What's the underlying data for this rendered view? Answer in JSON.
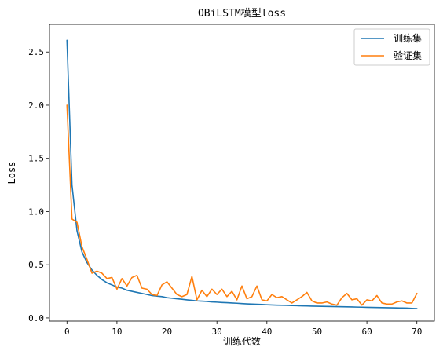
{
  "chart_data": {
    "type": "line",
    "title": "OBiLSTM模型loss",
    "xlabel": "训练代数",
    "ylabel": "Loss",
    "xlim": [
      -3.5,
      73.5
    ],
    "ylim": [
      -0.03,
      2.76
    ],
    "xticks": [
      0,
      10,
      20,
      30,
      40,
      50,
      60,
      70
    ],
    "yticks": [
      0.0,
      0.5,
      1.0,
      1.5,
      2.0,
      2.5
    ],
    "ytick_labels": [
      "0.0",
      "0.5",
      "1.0",
      "1.5",
      "2.0",
      "2.5"
    ],
    "grid": false,
    "legend": "top-right",
    "x": [
      0,
      1,
      2,
      3,
      4,
      5,
      6,
      7,
      8,
      9,
      10,
      11,
      12,
      13,
      14,
      15,
      16,
      17,
      18,
      19,
      20,
      21,
      22,
      23,
      24,
      25,
      26,
      27,
      28,
      29,
      30,
      31,
      32,
      33,
      34,
      35,
      36,
      37,
      38,
      39,
      40,
      41,
      42,
      43,
      44,
      45,
      46,
      47,
      48,
      49,
      50,
      51,
      52,
      53,
      54,
      55,
      56,
      57,
      58,
      59,
      60,
      61,
      62,
      63,
      64,
      65,
      66,
      67,
      68,
      69,
      70
    ],
    "series": [
      {
        "name": "训练集",
        "color": "#1f77b4",
        "values": [
          2.61,
          1.25,
          0.82,
          0.62,
          0.52,
          0.45,
          0.4,
          0.36,
          0.33,
          0.31,
          0.29,
          0.28,
          0.26,
          0.25,
          0.24,
          0.23,
          0.22,
          0.21,
          0.205,
          0.2,
          0.19,
          0.185,
          0.18,
          0.175,
          0.17,
          0.165,
          0.16,
          0.158,
          0.155,
          0.15,
          0.148,
          0.145,
          0.143,
          0.14,
          0.138,
          0.135,
          0.132,
          0.13,
          0.128,
          0.126,
          0.124,
          0.122,
          0.12,
          0.119,
          0.118,
          0.116,
          0.115,
          0.113,
          0.112,
          0.111,
          0.11,
          0.109,
          0.108,
          0.107,
          0.106,
          0.105,
          0.104,
          0.103,
          0.102,
          0.101,
          0.1,
          0.099,
          0.098,
          0.097,
          0.096,
          0.095,
          0.094,
          0.093,
          0.092,
          0.09,
          0.088
        ]
      },
      {
        "name": "验证集",
        "color": "#ff7f0e",
        "values": [
          2.0,
          0.93,
          0.9,
          0.67,
          0.55,
          0.42,
          0.44,
          0.42,
          0.37,
          0.38,
          0.27,
          0.37,
          0.3,
          0.38,
          0.4,
          0.28,
          0.27,
          0.22,
          0.21,
          0.31,
          0.34,
          0.28,
          0.22,
          0.2,
          0.22,
          0.39,
          0.17,
          0.26,
          0.2,
          0.27,
          0.22,
          0.27,
          0.2,
          0.25,
          0.17,
          0.3,
          0.18,
          0.2,
          0.3,
          0.17,
          0.16,
          0.22,
          0.19,
          0.2,
          0.17,
          0.14,
          0.17,
          0.2,
          0.24,
          0.16,
          0.14,
          0.14,
          0.15,
          0.13,
          0.12,
          0.19,
          0.23,
          0.17,
          0.18,
          0.12,
          0.17,
          0.16,
          0.21,
          0.14,
          0.13,
          0.13,
          0.15,
          0.16,
          0.14,
          0.14,
          0.23
        ]
      }
    ]
  }
}
